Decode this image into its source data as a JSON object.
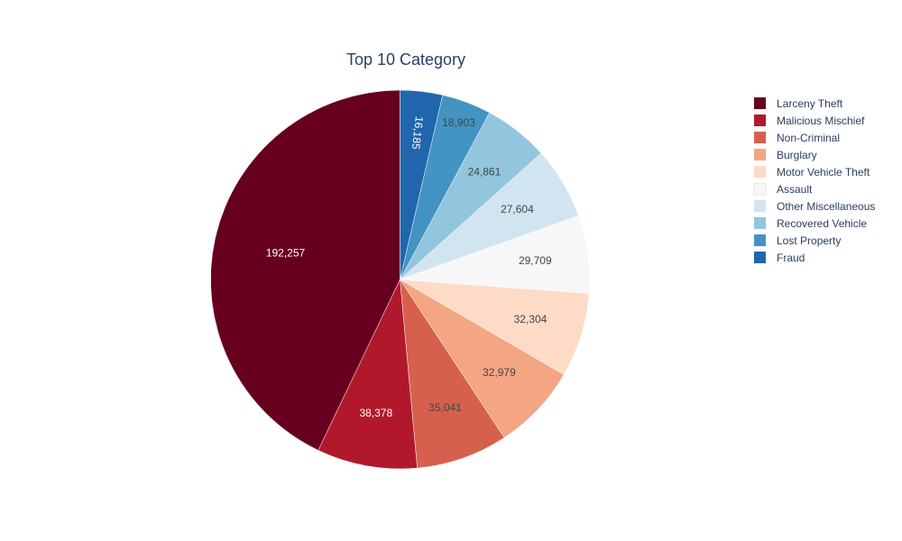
{
  "chart_data": {
    "type": "pie",
    "title": "Top 10 Category",
    "categories": [
      "Larceny Theft",
      "Malicious Mischief",
      "Non-Criminal",
      "Burglary",
      "Motor Vehicle Theft",
      "Assault",
      "Other Miscellaneous",
      "Recovered Vehicle",
      "Lost Property",
      "Fraud"
    ],
    "values": [
      192257,
      38378,
      35041,
      32979,
      32304,
      29709,
      27604,
      24861,
      18903,
      16185
    ],
    "value_labels": [
      "192,257",
      "38,378",
      "35,041",
      "32,979",
      "32,304",
      "29,709",
      "27,604",
      "24,861",
      "18,903",
      "16,185"
    ],
    "colors": [
      "#67001f",
      "#b2182b",
      "#d6604d",
      "#f4a582",
      "#fddbc7",
      "#f7f7f7",
      "#d1e5f0",
      "#92c5de",
      "#4393c3",
      "#2166ac"
    ],
    "label_colors": [
      "#ffffff",
      "#ffffff",
      "#444444",
      "#444444",
      "#444444",
      "#444444",
      "#444444",
      "#444444",
      "#444444",
      "#ffffff"
    ],
    "direction": "counterclockwise",
    "start": "top",
    "legend_position": "right"
  }
}
